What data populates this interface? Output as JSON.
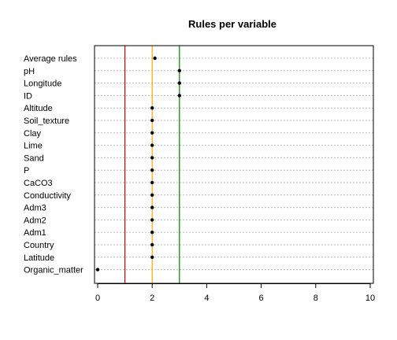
{
  "chart_data": {
    "type": "scatter",
    "subtype": "dotchart",
    "title": "Rules per variable",
    "xlabel": "",
    "ylabel": "",
    "xlim": [
      0,
      10
    ],
    "xticks": [
      0,
      2,
      4,
      6,
      8,
      10
    ],
    "grid": "horizontal dotted",
    "categories": [
      "Average rules",
      "pH",
      "Longitude",
      "ID",
      "Altitude",
      "Soil_texture",
      "Clay",
      "Lime",
      "Sand",
      "P",
      "CaCO3",
      "Conductivity",
      "Adm3",
      "Adm2",
      "Adm1",
      "Country",
      "Latitude",
      "Organic_matter"
    ],
    "values": [
      2.1,
      3,
      3,
      3,
      2,
      2,
      2,
      2,
      2,
      2,
      2,
      2,
      2,
      2,
      2,
      2,
      2,
      0
    ],
    "reference_lines": [
      {
        "value": 1,
        "color": "#cc0000"
      },
      {
        "value": 2,
        "color": "#ffa500"
      },
      {
        "value": 3,
        "color": "#008000"
      }
    ]
  }
}
